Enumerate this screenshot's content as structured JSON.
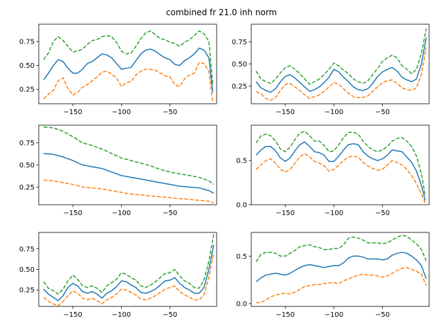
{
  "figure": {
    "title": "combined fr 21.0 inh norm"
  },
  "colors": {
    "mean": "#1f77b4",
    "lower": "#ff7f0e",
    "upper": "#2ca02c"
  },
  "chart_data": [
    {
      "type": "line",
      "xlim": [
        -185,
        -2
      ],
      "ylim": [
        0.1,
        0.93
      ],
      "xticks": [
        -150,
        -100,
        -50
      ],
      "yticks": [
        0.25,
        0.5,
        0.75
      ],
      "ytick_labels": [
        "0.25",
        "0.50",
        "0.75"
      ],
      "grid": false,
      "x": [
        -180,
        -175,
        -170,
        -165,
        -160,
        -155,
        -150,
        -145,
        -140,
        -135,
        -130,
        -125,
        -120,
        -115,
        -110,
        -105,
        -100,
        -95,
        -90,
        -85,
        -80,
        -75,
        -70,
        -65,
        -60,
        -55,
        -50,
        -45,
        -40,
        -35,
        -30,
        -25,
        -20,
        -15,
        -10,
        -6
      ],
      "series": [
        {
          "role": "upper",
          "style": "dashed",
          "values": [
            0.56,
            0.63,
            0.75,
            0.8,
            0.76,
            0.7,
            0.64,
            0.65,
            0.67,
            0.72,
            0.76,
            0.77,
            0.8,
            0.81,
            0.8,
            0.74,
            0.65,
            0.62,
            0.63,
            0.7,
            0.78,
            0.84,
            0.86,
            0.82,
            0.78,
            0.77,
            0.74,
            0.73,
            0.7,
            0.74,
            0.77,
            0.81,
            0.86,
            0.83,
            0.75,
            0.3
          ]
        },
        {
          "role": "mean",
          "style": "solid",
          "values": [
            0.35,
            0.42,
            0.5,
            0.56,
            0.54,
            0.47,
            0.42,
            0.42,
            0.46,
            0.52,
            0.54,
            0.58,
            0.62,
            0.61,
            0.58,
            0.52,
            0.46,
            0.47,
            0.48,
            0.55,
            0.62,
            0.66,
            0.67,
            0.65,
            0.61,
            0.58,
            0.56,
            0.51,
            0.5,
            0.55,
            0.58,
            0.62,
            0.68,
            0.66,
            0.58,
            0.22
          ]
        },
        {
          "role": "lower",
          "style": "dashed",
          "values": [
            0.15,
            0.2,
            0.24,
            0.34,
            0.37,
            0.26,
            0.19,
            0.22,
            0.27,
            0.3,
            0.34,
            0.38,
            0.43,
            0.44,
            0.41,
            0.37,
            0.28,
            0.32,
            0.33,
            0.4,
            0.44,
            0.46,
            0.46,
            0.45,
            0.42,
            0.39,
            0.38,
            0.3,
            0.28,
            0.36,
            0.4,
            0.42,
            0.53,
            0.52,
            0.44,
            0.12
          ]
        }
      ]
    },
    {
      "type": "line",
      "xlim": [
        -185,
        -2
      ],
      "ylim": [
        0.05,
        0.95
      ],
      "xticks": [
        -150,
        -100,
        -50
      ],
      "yticks": [
        0.25,
        0.5,
        0.75
      ],
      "ytick_labels": [
        "0.25",
        "0.50",
        "0.75"
      ],
      "grid": false,
      "x": [
        -180,
        -175,
        -170,
        -165,
        -160,
        -155,
        -150,
        -145,
        -140,
        -135,
        -130,
        -125,
        -120,
        -115,
        -110,
        -105,
        -100,
        -95,
        -90,
        -85,
        -80,
        -75,
        -70,
        -65,
        -60,
        -55,
        -50,
        -45,
        -40,
        -35,
        -30,
        -25,
        -20,
        -15,
        -10,
        -5
      ],
      "series": [
        {
          "role": "upper",
          "style": "dashed",
          "values": [
            0.42,
            0.33,
            0.3,
            0.28,
            0.33,
            0.4,
            0.46,
            0.48,
            0.44,
            0.39,
            0.33,
            0.27,
            0.3,
            0.33,
            0.38,
            0.44,
            0.51,
            0.48,
            0.43,
            0.39,
            0.33,
            0.3,
            0.28,
            0.31,
            0.38,
            0.45,
            0.53,
            0.57,
            0.6,
            0.57,
            0.48,
            0.44,
            0.39,
            0.44,
            0.62,
            0.9
          ]
        },
        {
          "role": "mean",
          "style": "solid",
          "values": [
            0.3,
            0.23,
            0.2,
            0.18,
            0.22,
            0.3,
            0.36,
            0.38,
            0.34,
            0.29,
            0.24,
            0.19,
            0.21,
            0.24,
            0.29,
            0.35,
            0.44,
            0.41,
            0.35,
            0.3,
            0.24,
            0.21,
            0.2,
            0.22,
            0.28,
            0.36,
            0.41,
            0.44,
            0.46,
            0.42,
            0.35,
            0.32,
            0.3,
            0.33,
            0.5,
            0.8
          ]
        },
        {
          "role": "lower",
          "style": "dashed",
          "values": [
            0.19,
            0.16,
            0.11,
            0.09,
            0.12,
            0.2,
            0.27,
            0.28,
            0.24,
            0.2,
            0.15,
            0.11,
            0.13,
            0.15,
            0.19,
            0.24,
            0.29,
            0.27,
            0.22,
            0.17,
            0.13,
            0.12,
            0.12,
            0.14,
            0.19,
            0.24,
            0.29,
            0.31,
            0.32,
            0.28,
            0.23,
            0.21,
            0.2,
            0.23,
            0.38,
            0.69
          ]
        }
      ]
    },
    {
      "type": "line",
      "xlim": [
        -185,
        -2
      ],
      "ylim": [
        0.05,
        0.95
      ],
      "xticks": [
        -150,
        -100,
        -50
      ],
      "yticks": [
        0.25,
        0.5,
        0.75
      ],
      "ytick_labels": [
        "0.25",
        "0.50",
        "0.75"
      ],
      "grid": false,
      "x": [
        -180,
        -170,
        -160,
        -150,
        -140,
        -130,
        -120,
        -110,
        -100,
        -90,
        -80,
        -70,
        -60,
        -50,
        -40,
        -30,
        -20,
        -10,
        -5
      ],
      "series": [
        {
          "role": "upper",
          "style": "dashed",
          "values": [
            0.93,
            0.92,
            0.88,
            0.82,
            0.75,
            0.72,
            0.68,
            0.63,
            0.58,
            0.55,
            0.52,
            0.49,
            0.45,
            0.42,
            0.4,
            0.38,
            0.36,
            0.32,
            0.28
          ]
        },
        {
          "role": "mean",
          "style": "solid",
          "values": [
            0.63,
            0.62,
            0.59,
            0.55,
            0.5,
            0.48,
            0.46,
            0.42,
            0.38,
            0.36,
            0.34,
            0.32,
            0.3,
            0.28,
            0.26,
            0.25,
            0.24,
            0.21,
            0.18
          ]
        },
        {
          "role": "lower",
          "style": "dashed",
          "values": [
            0.33,
            0.32,
            0.3,
            0.28,
            0.25,
            0.24,
            0.23,
            0.21,
            0.19,
            0.17,
            0.16,
            0.15,
            0.14,
            0.13,
            0.12,
            0.11,
            0.1,
            0.09,
            0.07
          ]
        }
      ]
    },
    {
      "type": "line",
      "xlim": [
        -185,
        -2
      ],
      "ylim": [
        0.0,
        0.9
      ],
      "xticks": [
        -150,
        -100,
        -50
      ],
      "yticks": [
        0.0,
        0.5
      ],
      "ytick_labels": [
        "0.0",
        "0.5"
      ],
      "grid": false,
      "x": [
        -180,
        -175,
        -170,
        -165,
        -160,
        -155,
        -150,
        -145,
        -140,
        -135,
        -130,
        -125,
        -120,
        -115,
        -110,
        -105,
        -100,
        -95,
        -90,
        -85,
        -80,
        -75,
        -70,
        -65,
        -60,
        -55,
        -50,
        -45,
        -40,
        -35,
        -30,
        -25,
        -20,
        -15,
        -10,
        -6
      ],
      "series": [
        {
          "role": "upper",
          "style": "dashed",
          "values": [
            0.7,
            0.78,
            0.8,
            0.78,
            0.72,
            0.63,
            0.6,
            0.65,
            0.74,
            0.81,
            0.83,
            0.78,
            0.72,
            0.72,
            0.67,
            0.6,
            0.61,
            0.68,
            0.76,
            0.82,
            0.82,
            0.8,
            0.72,
            0.66,
            0.62,
            0.6,
            0.62,
            0.66,
            0.72,
            0.75,
            0.76,
            0.72,
            0.66,
            0.55,
            0.35,
            0.1
          ]
        },
        {
          "role": "mean",
          "style": "solid",
          "values": [
            0.56,
            0.62,
            0.66,
            0.66,
            0.61,
            0.53,
            0.49,
            0.53,
            0.61,
            0.68,
            0.71,
            0.66,
            0.6,
            0.59,
            0.56,
            0.49,
            0.49,
            0.55,
            0.62,
            0.68,
            0.69,
            0.68,
            0.6,
            0.55,
            0.52,
            0.5,
            0.52,
            0.56,
            0.62,
            0.61,
            0.6,
            0.54,
            0.48,
            0.38,
            0.22,
            0.05
          ]
        },
        {
          "role": "lower",
          "style": "dashed",
          "values": [
            0.4,
            0.45,
            0.5,
            0.52,
            0.47,
            0.4,
            0.37,
            0.4,
            0.47,
            0.54,
            0.58,
            0.54,
            0.49,
            0.47,
            0.44,
            0.38,
            0.4,
            0.45,
            0.5,
            0.54,
            0.55,
            0.54,
            0.48,
            0.44,
            0.41,
            0.39,
            0.4,
            0.45,
            0.5,
            0.48,
            0.45,
            0.4,
            0.33,
            0.24,
            0.12,
            0.02
          ]
        }
      ]
    },
    {
      "type": "line",
      "xlim": [
        -185,
        -2
      ],
      "ylim": [
        0.05,
        0.95
      ],
      "xticks": [
        -150,
        -100,
        -50
      ],
      "yticks": [
        0.25,
        0.5,
        0.75
      ],
      "ytick_labels": [
        "0.25",
        "0.50",
        "0.75"
      ],
      "grid": false,
      "x": [
        -180,
        -175,
        -170,
        -165,
        -160,
        -155,
        -150,
        -145,
        -140,
        -135,
        -130,
        -125,
        -120,
        -115,
        -110,
        -105,
        -100,
        -95,
        -90,
        -85,
        -80,
        -75,
        -70,
        -65,
        -60,
        -55,
        -50,
        -45,
        -40,
        -35,
        -30,
        -25,
        -20,
        -15,
        -10,
        -5
      ],
      "series": [
        {
          "role": "upper",
          "style": "dashed",
          "values": [
            0.35,
            0.27,
            0.24,
            0.2,
            0.26,
            0.36,
            0.43,
            0.38,
            0.3,
            0.28,
            0.3,
            0.27,
            0.22,
            0.3,
            0.34,
            0.38,
            0.46,
            0.44,
            0.4,
            0.37,
            0.3,
            0.28,
            0.31,
            0.35,
            0.4,
            0.45,
            0.46,
            0.5,
            0.42,
            0.36,
            0.33,
            0.28,
            0.27,
            0.37,
            0.6,
            0.93
          ]
        },
        {
          "role": "mean",
          "style": "solid",
          "values": [
            0.26,
            0.2,
            0.16,
            0.12,
            0.18,
            0.28,
            0.33,
            0.3,
            0.23,
            0.21,
            0.23,
            0.2,
            0.15,
            0.21,
            0.24,
            0.29,
            0.36,
            0.35,
            0.31,
            0.28,
            0.22,
            0.21,
            0.23,
            0.26,
            0.31,
            0.36,
            0.37,
            0.4,
            0.33,
            0.28,
            0.25,
            0.21,
            0.21,
            0.28,
            0.5,
            0.8
          ]
        },
        {
          "role": "lower",
          "style": "dashed",
          "values": [
            0.16,
            0.11,
            0.08,
            0.06,
            0.11,
            0.18,
            0.24,
            0.21,
            0.15,
            0.13,
            0.15,
            0.12,
            0.08,
            0.13,
            0.16,
            0.2,
            0.26,
            0.25,
            0.22,
            0.19,
            0.14,
            0.13,
            0.15,
            0.18,
            0.22,
            0.26,
            0.28,
            0.3,
            0.23,
            0.19,
            0.16,
            0.13,
            0.13,
            0.19,
            0.4,
            0.7
          ]
        }
      ]
    },
    {
      "type": "line",
      "xlim": [
        -185,
        -2
      ],
      "ylim": [
        -0.03,
        0.75
      ],
      "xticks": [
        -150,
        -100,
        -50
      ],
      "yticks": [
        0.0,
        0.5
      ],
      "ytick_labels": [
        "0.0",
        "0.5"
      ],
      "grid": false,
      "x": [
        -180,
        -175,
        -170,
        -165,
        -160,
        -155,
        -150,
        -145,
        -140,
        -135,
        -130,
        -125,
        -120,
        -115,
        -110,
        -105,
        -100,
        -95,
        -90,
        -85,
        -80,
        -75,
        -70,
        -65,
        -60,
        -55,
        -50,
        -45,
        -40,
        -35,
        -30,
        -25,
        -20,
        -15,
        -10,
        -5
      ],
      "series": [
        {
          "role": "upper",
          "style": "dashed",
          "values": [
            0.44,
            0.52,
            0.54,
            0.54,
            0.53,
            0.5,
            0.5,
            0.53,
            0.56,
            0.6,
            0.61,
            0.62,
            0.6,
            0.59,
            0.57,
            0.57,
            0.58,
            0.58,
            0.62,
            0.69,
            0.7,
            0.69,
            0.67,
            0.64,
            0.64,
            0.64,
            0.63,
            0.64,
            0.67,
            0.7,
            0.72,
            0.71,
            0.67,
            0.63,
            0.57,
            0.45
          ]
        },
        {
          "role": "mean",
          "style": "solid",
          "values": [
            0.23,
            0.27,
            0.3,
            0.31,
            0.32,
            0.31,
            0.3,
            0.32,
            0.35,
            0.38,
            0.4,
            0.41,
            0.4,
            0.39,
            0.38,
            0.39,
            0.4,
            0.4,
            0.43,
            0.48,
            0.5,
            0.5,
            0.49,
            0.47,
            0.47,
            0.47,
            0.46,
            0.47,
            0.51,
            0.53,
            0.54,
            0.53,
            0.5,
            0.46,
            0.4,
            0.26
          ]
        },
        {
          "role": "lower",
          "style": "dashed",
          "values": [
            0.01,
            0.01,
            0.04,
            0.07,
            0.09,
            0.1,
            0.11,
            0.1,
            0.12,
            0.15,
            0.18,
            0.19,
            0.2,
            0.2,
            0.21,
            0.22,
            0.22,
            0.21,
            0.24,
            0.26,
            0.28,
            0.3,
            0.31,
            0.3,
            0.3,
            0.29,
            0.28,
            0.29,
            0.32,
            0.35,
            0.37,
            0.38,
            0.36,
            0.34,
            0.31,
            0.19
          ]
        }
      ]
    }
  ]
}
